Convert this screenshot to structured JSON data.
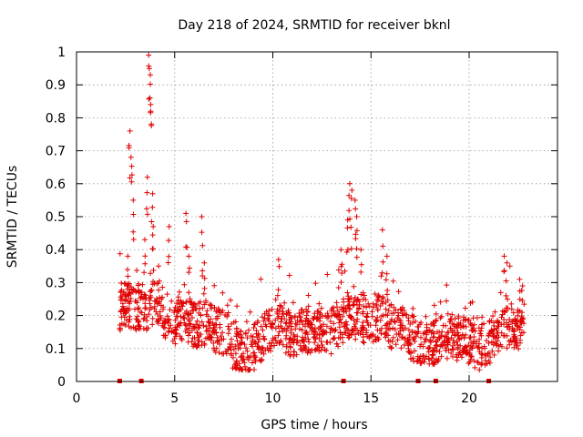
{
  "chart_data": {
    "type": "scatter",
    "title": "Day 218 of 2024, SRMTID for receiver bknl",
    "xlabel": "GPS time / hours",
    "ylabel": "SRMTID / TECUs",
    "xlim": [
      0,
      24.5
    ],
    "ylim": [
      0,
      1
    ],
    "x_ticks": [
      "0",
      "5",
      "10",
      "15",
      "20"
    ],
    "x_tick_values": [
      0,
      5,
      10,
      15,
      20
    ],
    "y_ticks": [
      "0",
      "0.1",
      "0.2",
      "0.3",
      "0.4",
      "0.5",
      "0.6",
      "0.7",
      "0.8",
      "0.9",
      "1"
    ],
    "y_tick_values": [
      0,
      0.1,
      0.2,
      0.3,
      0.4,
      0.5,
      0.6,
      0.7,
      0.8,
      0.9,
      1
    ],
    "grid": true,
    "marker": "plus",
    "color": "#e00000",
    "data_start_hour": 2.2,
    "data_end_hour": 22.8,
    "data_gap_markers_x": [
      2.2,
      3.3,
      13.6,
      17.4,
      18.3,
      21.0
    ],
    "series": [
      {
        "name": "SRMTID",
        "trend": [
          [
            2.2,
            0.22
          ],
          [
            2.5,
            0.24
          ],
          [
            3.0,
            0.21
          ],
          [
            3.5,
            0.2
          ],
          [
            4.0,
            0.25
          ],
          [
            4.5,
            0.2
          ],
          [
            5.0,
            0.18
          ],
          [
            5.5,
            0.2
          ],
          [
            6.0,
            0.17
          ],
          [
            6.5,
            0.18
          ],
          [
            7.0,
            0.16
          ],
          [
            7.5,
            0.15
          ],
          [
            8.0,
            0.1
          ],
          [
            8.5,
            0.08
          ],
          [
            9.0,
            0.1
          ],
          [
            9.5,
            0.14
          ],
          [
            10.0,
            0.16
          ],
          [
            10.5,
            0.16
          ],
          [
            11.0,
            0.14
          ],
          [
            11.5,
            0.15
          ],
          [
            12.0,
            0.15
          ],
          [
            12.5,
            0.16
          ],
          [
            13.0,
            0.15
          ],
          [
            13.5,
            0.18
          ],
          [
            14.0,
            0.2
          ],
          [
            14.5,
            0.19
          ],
          [
            15.0,
            0.18
          ],
          [
            15.5,
            0.2
          ],
          [
            16.0,
            0.17
          ],
          [
            16.5,
            0.16
          ],
          [
            17.0,
            0.14
          ],
          [
            17.5,
            0.11
          ],
          [
            18.0,
            0.11
          ],
          [
            18.5,
            0.13
          ],
          [
            19.0,
            0.14
          ],
          [
            19.5,
            0.13
          ],
          [
            20.0,
            0.12
          ],
          [
            20.5,
            0.1
          ],
          [
            21.0,
            0.12
          ],
          [
            21.5,
            0.16
          ],
          [
            22.0,
            0.17
          ],
          [
            22.5,
            0.16
          ],
          [
            22.8,
            0.18
          ]
        ],
        "peaks": [
          [
            2.6,
            0.38
          ],
          [
            2.7,
            0.76
          ],
          [
            2.8,
            0.68
          ],
          [
            2.9,
            0.55
          ],
          [
            3.5,
            0.43
          ],
          [
            3.6,
            0.62
          ],
          [
            3.7,
            0.99
          ],
          [
            3.75,
            0.93
          ],
          [
            3.8,
            0.84
          ],
          [
            3.85,
            0.57
          ],
          [
            3.9,
            0.47
          ],
          [
            4.2,
            0.35
          ],
          [
            4.7,
            0.47
          ],
          [
            5.6,
            0.51
          ],
          [
            5.7,
            0.38
          ],
          [
            6.4,
            0.5
          ],
          [
            6.5,
            0.36
          ],
          [
            10.3,
            0.37
          ],
          [
            13.5,
            0.4
          ],
          [
            13.8,
            0.49
          ],
          [
            13.9,
            0.6
          ],
          [
            14.0,
            0.58
          ],
          [
            14.2,
            0.55
          ],
          [
            14.3,
            0.5
          ],
          [
            14.5,
            0.4
          ],
          [
            15.6,
            0.46
          ],
          [
            15.8,
            0.38
          ],
          [
            21.8,
            0.38
          ],
          [
            21.9,
            0.36
          ],
          [
            22.6,
            0.31
          ],
          [
            22.7,
            0.29
          ]
        ]
      }
    ]
  }
}
